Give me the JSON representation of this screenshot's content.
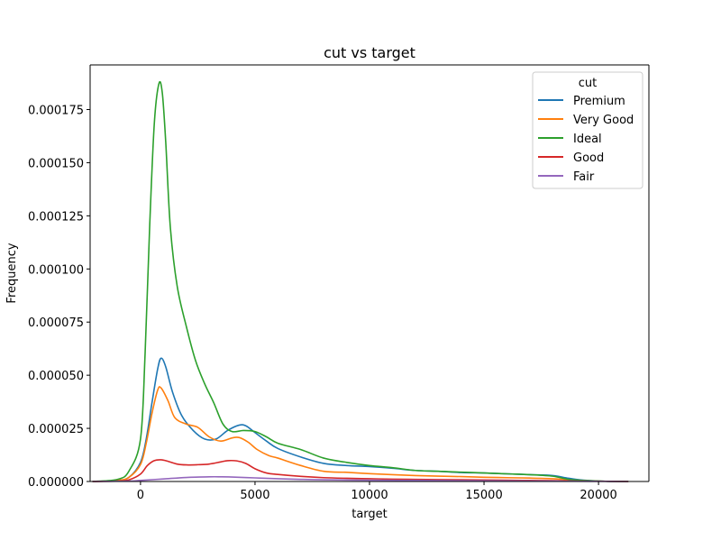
{
  "chart_data": {
    "type": "line",
    "title": "cut vs target",
    "xlabel": "target",
    "ylabel": "Frequency",
    "xlim": [
      -2200,
      22200
    ],
    "ylim": [
      0,
      0.000196
    ],
    "x_ticks": [
      0,
      5000,
      10000,
      15000,
      20000
    ],
    "y_ticks": [
      0,
      2.5e-05,
      5e-05,
      7.5e-05,
      0.0001,
      0.000125,
      0.00015,
      0.000175
    ],
    "x_tick_labels": [
      "0",
      "5000",
      "10000",
      "15000",
      "20000"
    ],
    "y_tick_labels": [
      "0.000000",
      "0.000025",
      "0.000050",
      "0.000075",
      "0.000100",
      "0.000125",
      "0.000150",
      "0.000175"
    ],
    "grid": false,
    "legend": {
      "title": "cut",
      "position": "top-right"
    },
    "series": [
      {
        "name": "Premium",
        "color": "#1f77b4",
        "x": [
          -2100,
          -1000,
          -500,
          0,
          250,
          500,
          750,
          900,
          1100,
          1400,
          1800,
          2300,
          2800,
          3300,
          3800,
          4300,
          4600,
          5000,
          5500,
          6000,
          7000,
          8000,
          9000,
          10000,
          11000,
          12000,
          13000,
          14000,
          15000,
          16000,
          17000,
          18000,
          18700,
          19500,
          20300,
          21300
        ],
        "y": [
          0,
          5e-07,
          2e-06,
          9e-06,
          2e-05,
          3.7e-05,
          5.3e-05,
          5.8e-05,
          5.4e-05,
          4.2e-05,
          3.1e-05,
          2.4e-05,
          2e-05,
          2e-05,
          2.4e-05,
          2.65e-05,
          2.62e-05,
          2.3e-05,
          1.9e-05,
          1.55e-05,
          1.15e-05,
          8.5e-06,
          7.5e-06,
          7e-06,
          6.2e-06,
          5.2e-06,
          4.8e-06,
          4.2e-06,
          4e-06,
          3.6e-06,
          3.2e-06,
          2.8e-06,
          1.5e-06,
          5e-07,
          1e-07,
          0
        ]
      },
      {
        "name": "Very Good",
        "color": "#ff7f0e",
        "x": [
          -2100,
          -1000,
          -500,
          0,
          250,
          500,
          750,
          900,
          1200,
          1500,
          2000,
          2500,
          3000,
          3500,
          4000,
          4300,
          4700,
          5100,
          5600,
          6000,
          7000,
          8000,
          9000,
          10000,
          11000,
          12000,
          13000,
          14000,
          15000,
          16000,
          17000,
          18000,
          18700,
          19500,
          20300,
          21300
        ],
        "y": [
          0,
          5e-07,
          2e-06,
          8e-06,
          1.8e-05,
          3.2e-05,
          4.3e-05,
          4.4e-05,
          3.8e-05,
          3e-05,
          2.7e-05,
          2.55e-05,
          2.1e-05,
          1.9e-05,
          2.05e-05,
          2.07e-05,
          1.85e-05,
          1.5e-05,
          1.22e-05,
          1.1e-05,
          7.5e-06,
          4.8e-06,
          4.3e-06,
          3.7e-06,
          3.2e-06,
          2.8e-06,
          2.5e-06,
          2.3e-06,
          2e-06,
          1.8e-06,
          1.6e-06,
          1.3e-06,
          8e-07,
          3e-07,
          1e-07,
          0
        ]
      },
      {
        "name": "Ideal",
        "color": "#2ca02c",
        "x": [
          -2100,
          -1000,
          -500,
          0,
          200,
          400,
          600,
          800,
          950,
          1100,
          1300,
          1600,
          2000,
          2400,
          2800,
          3200,
          3600,
          4000,
          4500,
          5000,
          5500,
          6000,
          7000,
          8000,
          9000,
          10000,
          11000,
          12000,
          13000,
          14000,
          15000,
          16000,
          17000,
          18000,
          18700,
          19500,
          20300,
          21300
        ],
        "y": [
          0,
          1e-06,
          5e-06,
          2e-05,
          6e-05,
          0.00012,
          0.000168,
          0.000187,
          0.000183,
          0.00016,
          0.00012,
          9.2e-05,
          7.3e-05,
          5.7e-05,
          4.6e-05,
          3.7e-05,
          2.7e-05,
          2.35e-05,
          2.4e-05,
          2.35e-05,
          2.1e-05,
          1.8e-05,
          1.5e-05,
          1.1e-05,
          9e-06,
          7.5e-06,
          6.5e-06,
          5.2e-06,
          4.8e-06,
          4.4e-06,
          4e-06,
          3.6e-06,
          3.2e-06,
          2.5e-06,
          1e-06,
          4e-07,
          1e-07,
          0
        ]
      },
      {
        "name": "Good",
        "color": "#d62728",
        "x": [
          -2100,
          -1000,
          -500,
          0,
          300,
          600,
          900,
          1200,
          1600,
          2000,
          2500,
          3000,
          3500,
          3800,
          4200,
          4600,
          5000,
          5500,
          6000,
          7000,
          8000,
          9000,
          10000,
          11000,
          12000,
          13000,
          14000,
          15000,
          16000,
          17000,
          18000,
          19000,
          20300,
          21300
        ],
        "y": [
          0,
          2e-07,
          8e-07,
          3.5e-06,
          7.5e-06,
          9.8e-06,
          1.02e-05,
          9.5e-06,
          8.2e-06,
          7.8e-06,
          7.9e-06,
          8.2e-06,
          9.2e-06,
          9.8e-06,
          9.7e-06,
          8.5e-06,
          6e-06,
          4e-06,
          3.3e-06,
          2.4e-06,
          1.8e-06,
          1.5e-06,
          1.3e-06,
          1.1e-06,
          1e-06,
          9e-07,
          8e-07,
          7e-07,
          6e-07,
          5e-07,
          4e-07,
          2e-07,
          1e-07,
          0
        ]
      },
      {
        "name": "Fair",
        "color": "#9467bd",
        "x": [
          -2100,
          -500,
          0,
          1000,
          2000,
          3000,
          3500,
          4000,
          5000,
          6000,
          7000,
          8000,
          10000,
          12000,
          14000,
          16000,
          18000,
          19000,
          20300,
          21300
        ],
        "y": [
          0,
          2e-07,
          5e-07,
          1.2e-06,
          1.9e-06,
          2.2e-06,
          2.2e-06,
          2.1e-06,
          1.7e-06,
          1.3e-06,
          1e-06,
          8e-07,
          6e-07,
          5e-07,
          4e-07,
          3e-07,
          2e-07,
          1e-07,
          5e-08,
          0
        ]
      }
    ]
  }
}
